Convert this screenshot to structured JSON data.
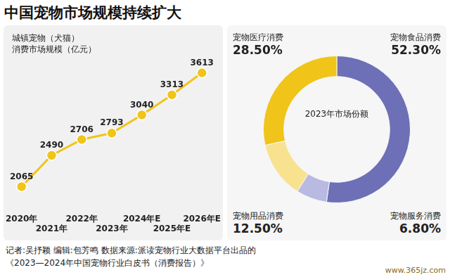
{
  "title": "中国宠物市场规模持续扩大",
  "chart_data": [
    {
      "type": "line",
      "ylabel": [
        "城镇宠物（犬猫）",
        "消费市场规模（亿元）"
      ],
      "categories": [
        "2020年",
        "2021年",
        "2022年",
        "2023年",
        "2024年E",
        "2025年E",
        "2026年E"
      ],
      "values": [
        2065,
        2490,
        2706,
        2793,
        3040,
        3313,
        3613
      ],
      "color": "#f0c419",
      "marker": "circle",
      "data_labels": true,
      "tick_labels": "x",
      "grid": false,
      "ylim": [
        1800,
        3800
      ]
    },
    {
      "type": "doughnut",
      "title": "2023年市场份额",
      "categories": [
        "宠物食品消费",
        "宠物服务消费",
        "宠物用品消费",
        "宠物医疗消费"
      ],
      "values": [
        52.3,
        6.8,
        12.5,
        28.5
      ],
      "value_labels": [
        "52.30%",
        "6.80%",
        "12.50%",
        "28.50%"
      ],
      "colors": [
        "#6d70b6",
        "#b9bae2",
        "#f8e28f",
        "#f0c419"
      ],
      "data_labels": true
    }
  ],
  "footer": [
    "记者:吴抒颖  编辑:包芳鸣  数据来源:派读宠物行业大数据平台出品的",
    "《2023—2024年中国宠物行业白皮书（消费报告）》"
  ],
  "watermark": "www.365jz.com"
}
